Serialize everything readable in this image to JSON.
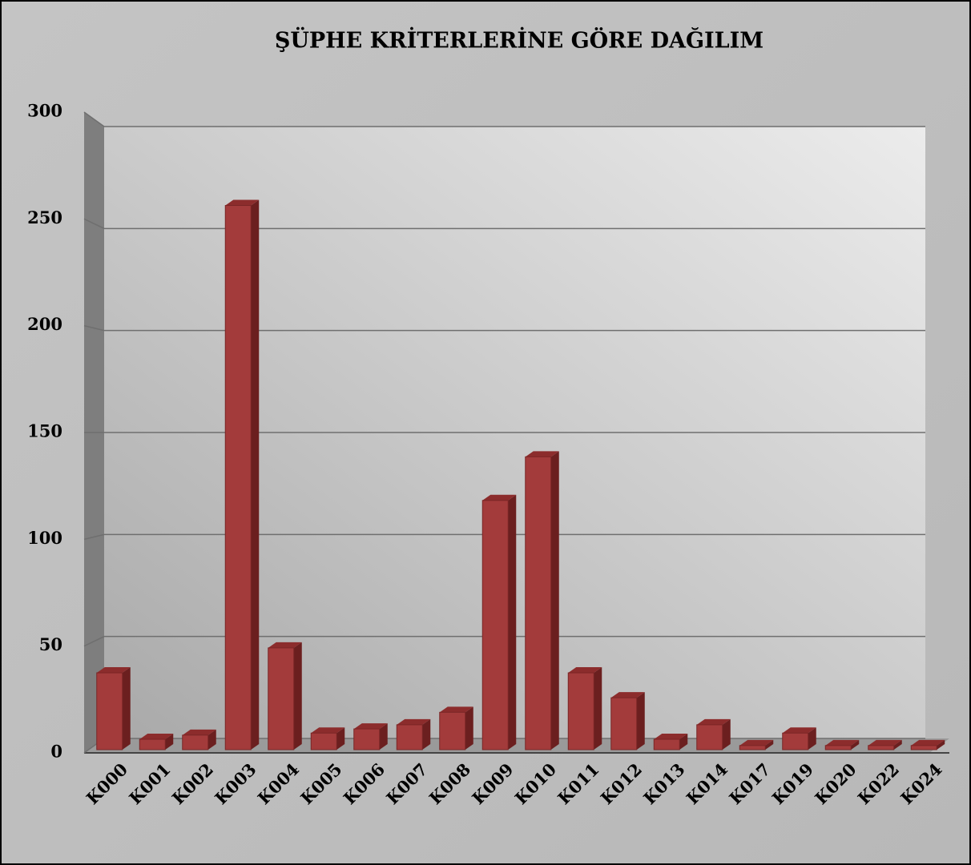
{
  "chart_data": {
    "type": "bar3d",
    "title": "ŞÜPHE KRİTERLERİNE GÖRE DAĞILIM",
    "categories": [
      "K000",
      "K001",
      "K002",
      "K003",
      "K004",
      "K005",
      "K006",
      "K007",
      "K008",
      "K009",
      "K010",
      "K011",
      "K012",
      "K013",
      "K014",
      "K017",
      "K019",
      "K020",
      "K022",
      "K024"
    ],
    "values": [
      37,
      5,
      7,
      262,
      49,
      8,
      10,
      12,
      18,
      120,
      141,
      37,
      25,
      5,
      12,
      2,
      8,
      2,
      2,
      2
    ],
    "color": "#a33b3b",
    "ylim": [
      0,
      300
    ],
    "yticks": [
      0,
      50,
      100,
      150,
      200,
      250,
      300
    ],
    "grid": true
  }
}
